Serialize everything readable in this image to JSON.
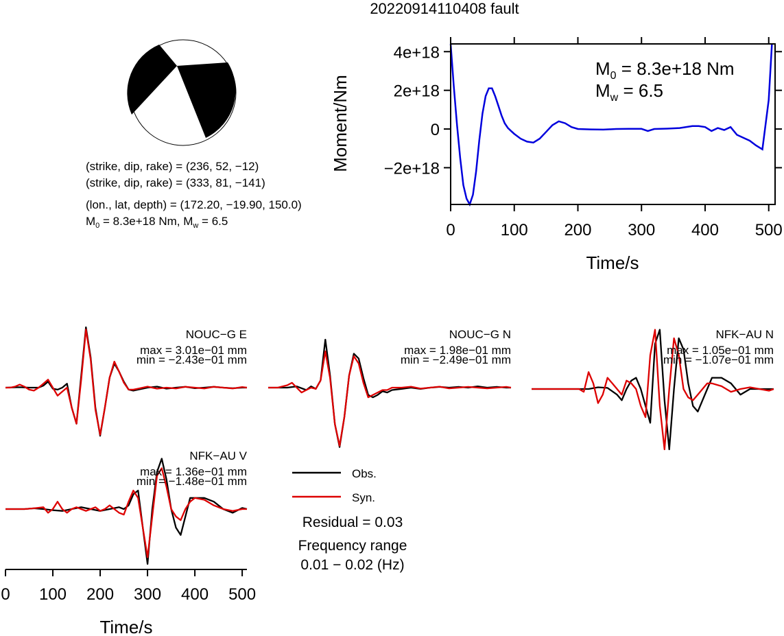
{
  "figure_title": "20220914110408 fault",
  "mechanism": {
    "line1": "(strike, dip, rake) = (236, 52, −12)",
    "line2": "(strike, dip, rake) = (333, 81, −141)",
    "line3": "(lon., lat, depth) = (172.20, −19.90, 150.0)",
    "m0_label": "M",
    "m0_sub": "0",
    "m0_value": " =  8.3e+18 Nm, M",
    "mw_sub": "w",
    "mw_value": " = 6.5"
  },
  "stf_annotation": {
    "m0_label": "M",
    "m0_sub": "0",
    "m0_value": " =  8.3e+18 Nm",
    "mw_label": "M",
    "mw_sub": "w",
    "mw_value": " = 6.5"
  },
  "legend": {
    "obs_label": "Obs.",
    "syn_label": "Syn.",
    "obs_color": "#000000",
    "syn_color": "#dd0000"
  },
  "residual_text": "Residual = 0.03",
  "freq_text_1": "Frequency range",
  "freq_text_2": "0.01 − 0.02 (Hz)",
  "chart_data": [
    {
      "type": "line",
      "id": "moment_rate_function",
      "xlabel": "Time/s",
      "ylabel": "Moment/Nm",
      "xlim": [
        0,
        510
      ],
      "ylim": [
        -3.9e+18,
        4.4e+18
      ],
      "xticks": [
        0,
        100,
        200,
        300,
        400,
        500
      ],
      "yticks": [
        -2e+18,
        0,
        2e+18,
        4e+18
      ],
      "ytick_labels": [
        "−2e+18",
        "0",
        "2e+18",
        "4e+18"
      ],
      "line_color": "#0000dd",
      "x": [
        0,
        5,
        10,
        15,
        20,
        25,
        30,
        35,
        40,
        45,
        50,
        55,
        60,
        65,
        70,
        75,
        80,
        85,
        90,
        95,
        100,
        110,
        120,
        130,
        140,
        150,
        160,
        170,
        180,
        190,
        200,
        220,
        240,
        260,
        280,
        300,
        310,
        320,
        340,
        360,
        380,
        390,
        400,
        410,
        420,
        430,
        440,
        450,
        460,
        470,
        480,
        490,
        500,
        505
      ],
      "y": [
        4.4e+18,
        2.2e+18,
        2e+17,
        -1.5e+18,
        -2.9e+18,
        -3.6e+18,
        -3.9e+18,
        -3.4e+18,
        -2.2e+18,
        -6e+17,
        8e+17,
        1.7e+18,
        2.1e+18,
        2.1e+18,
        1.7e+18,
        1.2e+18,
        7e+17,
        3e+17,
        5e+16,
        -1e+17,
        -2.5e+17,
        -5e+17,
        -6.5e+17,
        -7e+17,
        -5e+17,
        -1.5e+17,
        2e+17,
        4e+17,
        3e+17,
        1e+17,
        0.0,
        -2e+16,
        -3e+16,
        0.0,
        1e+16,
        1e+16,
        -1e+17,
        0.0,
        2e+16,
        5e+16,
        1.5e+17,
        1.5e+17,
        1e+17,
        -1e+17,
        5e+16,
        -5e+16,
        1e+17,
        -3e+17,
        -4.5e+17,
        -6e+17,
        -8.5e+17,
        -1.05e+18,
        1.5e+18,
        4.4e+18
      ]
    },
    {
      "type": "line",
      "id": "waveform_NOUC-G_E",
      "station": "NOUC−G E",
      "max_text": "max = 3.01e−01 mm",
      "min_text": "min = −2.43e−01 mm",
      "xlim": [
        0,
        510
      ],
      "ylim": [
        -0.243,
        0.301
      ],
      "series": [
        {
          "name": "Obs.",
          "x": [
            0,
            30,
            50,
            70,
            80,
            90,
            100,
            110,
            120,
            130,
            140,
            150,
            160,
            170,
            180,
            190,
            200,
            210,
            220,
            230,
            240,
            250,
            260,
            270,
            280,
            300,
            320,
            340,
            360,
            380,
            400,
            420,
            440,
            460,
            480,
            500,
            510
          ],
          "y": [
            0,
            0.002,
            0.0,
            0.0,
            0.01,
            0.03,
            -0.005,
            -0.01,
            0.0,
            0.02,
            -0.1,
            -0.18,
            0.06,
            0.301,
            0.15,
            -0.1,
            -0.24,
            -0.1,
            0.05,
            0.12,
            0.08,
            0.03,
            -0.01,
            -0.015,
            -0.01,
            0.0,
            0.005,
            -0.005,
            0.0,
            0.004,
            -0.003,
            0.0,
            0.004,
            0.0,
            -0.003,
            0.0,
            0.0
          ]
        },
        {
          "name": "Syn.",
          "x": [
            0,
            10,
            20,
            30,
            40,
            50,
            60,
            70,
            80,
            90,
            100,
            110,
            120,
            130,
            140,
            150,
            160,
            170,
            180,
            190,
            200,
            210,
            220,
            230,
            240,
            250,
            260,
            270,
            280,
            300,
            320,
            340,
            360,
            380,
            400,
            420,
            440,
            460,
            480,
            500,
            510
          ],
          "y": [
            0,
            0.0,
            0.005,
            0.015,
            0.005,
            -0.01,
            -0.015,
            0.0,
            0.02,
            0.04,
            0.0,
            -0.04,
            -0.02,
            0.0,
            -0.1,
            -0.18,
            0.04,
            0.29,
            0.14,
            -0.11,
            -0.235,
            -0.1,
            0.05,
            0.13,
            0.08,
            0.025,
            -0.01,
            -0.01,
            -0.005,
            0.005,
            -0.005,
            0.0,
            -0.004,
            0.004,
            0.0,
            -0.004,
            0.004,
            0.0,
            -0.004,
            0.003,
            0.0
          ]
        }
      ]
    },
    {
      "type": "line",
      "id": "waveform_NOUC-G_N",
      "station": "NOUC−G N",
      "max_text": "max = 1.98e−01 mm",
      "min_text": "min = −2.49e−01 mm",
      "xlim": [
        0,
        510
      ],
      "ylim": [
        -0.249,
        0.198
      ],
      "series": [
        {
          "name": "Obs.",
          "x": [
            0,
            20,
            40,
            60,
            80,
            90,
            100,
            110,
            120,
            130,
            140,
            150,
            160,
            170,
            180,
            190,
            200,
            210,
            220,
            230,
            240,
            250,
            260,
            280,
            300,
            320,
            340,
            360,
            380,
            400,
            420,
            440,
            460,
            480,
            500,
            510
          ],
          "y": [
            0,
            0.0,
            0.0,
            0.005,
            -0.01,
            0.005,
            -0.005,
            0.03,
            0.198,
            0.05,
            -0.15,
            -0.245,
            -0.12,
            0.05,
            0.14,
            0.12,
            0.04,
            -0.03,
            -0.04,
            -0.03,
            -0.015,
            -0.02,
            -0.01,
            -0.005,
            0.0,
            -0.005,
            0.0,
            0.003,
            0.0,
            0.003,
            0.0,
            0.005,
            0.0,
            0.003,
            0.0,
            0.0
          ]
        },
        {
          "name": "Syn.",
          "x": [
            0,
            20,
            40,
            50,
            60,
            70,
            80,
            90,
            100,
            110,
            120,
            130,
            140,
            150,
            160,
            170,
            180,
            190,
            200,
            210,
            220,
            230,
            240,
            250,
            260,
            280,
            300,
            320,
            340,
            360,
            380,
            400,
            420,
            440,
            460,
            480,
            500,
            510
          ],
          "y": [
            0,
            0.0,
            0.01,
            0.02,
            0.0,
            -0.02,
            -0.01,
            0.0,
            -0.005,
            0.03,
            0.15,
            0.04,
            -0.15,
            -0.24,
            -0.12,
            0.05,
            0.13,
            0.1,
            0.02,
            -0.04,
            -0.03,
            -0.02,
            -0.01,
            -0.01,
            0.0,
            0.0,
            0.004,
            -0.004,
            0.0,
            0.004,
            -0.003,
            0.0,
            0.003,
            0.0,
            -0.003,
            0.0,
            0.003,
            0.0
          ]
        }
      ]
    },
    {
      "type": "line",
      "id": "waveform_NFK-AU_N",
      "station": "NFK−AU N",
      "max_text": "max = 1.05e−01 mm",
      "min_text": "min = −1.07e−01 mm",
      "xlim": [
        0,
        510
      ],
      "ylim": [
        -0.107,
        0.105
      ],
      "series": [
        {
          "name": "Obs.",
          "x": [
            0,
            20,
            40,
            60,
            80,
            100,
            120,
            140,
            160,
            180,
            190,
            200,
            210,
            220,
            230,
            240,
            250,
            260,
            270,
            280,
            290,
            300,
            310,
            320,
            330,
            340,
            350,
            360,
            370,
            380,
            400,
            420,
            440,
            460,
            480,
            500,
            510
          ],
          "y": [
            0,
            0.0,
            0.0,
            0.0,
            0.0,
            0.0,
            0.0,
            0.003,
            0.002,
            -0.01,
            -0.02,
            0.0,
            0.015,
            0.02,
            0.0,
            -0.03,
            -0.06,
            0.08,
            0.105,
            -0.02,
            -0.107,
            0.0,
            0.09,
            0.07,
            0.01,
            -0.03,
            -0.04,
            -0.02,
            0.0,
            0.02,
            0.02,
            0.01,
            -0.01,
            0.0,
            0.0,
            0.0,
            0.0
          ]
        },
        {
          "name": "Syn.",
          "x": [
            0,
            20,
            40,
            60,
            80,
            100,
            110,
            120,
            130,
            140,
            150,
            160,
            170,
            180,
            190,
            200,
            210,
            220,
            230,
            240,
            250,
            260,
            270,
            280,
            290,
            300,
            310,
            320,
            330,
            340,
            350,
            360,
            370,
            380,
            400,
            420,
            440,
            460,
            480,
            500,
            510
          ],
          "y": [
            0,
            0.0,
            0.0,
            0.0,
            0.0,
            0.0,
            -0.005,
            0.03,
            0.01,
            -0.025,
            -0.01,
            0.02,
            0.01,
            0.0,
            -0.01,
            0.015,
            0.01,
            0.0,
            -0.03,
            -0.05,
            0.06,
            0.105,
            -0.03,
            -0.107,
            0.0,
            0.09,
            0.06,
            0.0,
            -0.015,
            -0.02,
            -0.01,
            0.0,
            0.01,
            0.01,
            0.005,
            -0.005,
            0.0,
            0.003,
            0.0,
            -0.003,
            0.0
          ]
        }
      ]
    },
    {
      "type": "line",
      "id": "waveform_NFK-AU_V",
      "station": "NFK−AU V",
      "max_text": "max = 1.36e−01 mm",
      "min_text": "min = −1.48e−01 mm",
      "xlabel": "Time/s",
      "xlim": [
        0,
        510
      ],
      "xticks": [
        0,
        100,
        200,
        300,
        400,
        500
      ],
      "ylim": [
        -0.148,
        0.136
      ],
      "series": [
        {
          "name": "Obs.",
          "x": [
            0,
            20,
            40,
            60,
            80,
            100,
            120,
            140,
            160,
            180,
            200,
            220,
            240,
            250,
            260,
            270,
            280,
            290,
            300,
            310,
            320,
            330,
            340,
            350,
            360,
            370,
            380,
            390,
            400,
            420,
            440,
            460,
            480,
            500,
            510
          ],
          "y": [
            0,
            0.0,
            0.0,
            0.002,
            0.0,
            -0.003,
            -0.005,
            0.0,
            0.005,
            0.0,
            -0.005,
            0.0,
            0.005,
            0.0,
            0.01,
            0.04,
            0.05,
            -0.05,
            -0.148,
            0.0,
            0.1,
            0.136,
            0.08,
            0.0,
            -0.05,
            -0.07,
            -0.02,
            0.03,
            0.03,
            0.03,
            0.02,
            0.0,
            -0.01,
            0.003,
            0.0
          ]
        },
        {
          "name": "Syn.",
          "x": [
            0,
            20,
            40,
            60,
            80,
            90,
            100,
            110,
            120,
            130,
            140,
            150,
            160,
            170,
            180,
            190,
            200,
            210,
            220,
            230,
            240,
            250,
            260,
            270,
            280,
            290,
            300,
            310,
            320,
            330,
            340,
            350,
            360,
            370,
            380,
            390,
            400,
            420,
            440,
            460,
            480,
            500,
            510
          ],
          "y": [
            0,
            0.0,
            0.0,
            0.002,
            0.005,
            -0.01,
            0.0,
            0.02,
            0.0,
            -0.01,
            0.0,
            0.005,
            0.0,
            -0.005,
            0.0,
            0.005,
            -0.005,
            0.0,
            0.01,
            0.0,
            -0.01,
            -0.015,
            0.02,
            0.05,
            0.03,
            -0.05,
            -0.13,
            -0.02,
            0.09,
            0.11,
            0.06,
            0.0,
            -0.02,
            -0.03,
            0.0,
            0.02,
            0.03,
            0.025,
            0.01,
            0.0,
            -0.005,
            0.0,
            0.0
          ]
        }
      ]
    }
  ]
}
